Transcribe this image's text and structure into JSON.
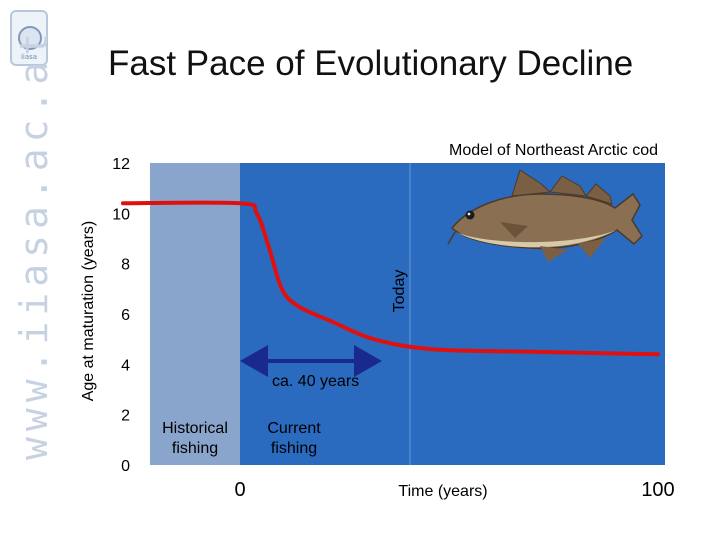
{
  "slide": {
    "title": "Fast Pace of Evolutionary Decline",
    "side_watermark": "www.iiasa.ac.at",
    "logo_text": "iiasa"
  },
  "colors": {
    "plot_background": "#2a6abf",
    "historical_shade": "#8aa5cc",
    "curve": "#e01010",
    "arrow": "#1a2a8c"
  },
  "chart_data": {
    "type": "line",
    "title": "Model of Northeast Arctic cod",
    "xlabel": "Time (years)",
    "ylabel": "Age at maturation (years)",
    "ylim": [
      0,
      12
    ],
    "yticks": [
      0,
      2,
      4,
      6,
      8,
      10,
      12
    ],
    "xlim": [
      -28,
      100
    ],
    "xtick_labels": [
      {
        "x": 0,
        "label": "0"
      },
      {
        "x": 100,
        "label": "100"
      }
    ],
    "series": [
      {
        "values": [
          {
            "x": -28,
            "y": 10.4
          },
          {
            "x": 0,
            "y": 10.4
          },
          {
            "x": 4,
            "y": 10.0
          },
          {
            "x": 7,
            "y": 8.6
          },
          {
            "x": 10,
            "y": 7.0
          },
          {
            "x": 14,
            "y": 6.3
          },
          {
            "x": 22,
            "y": 5.7
          },
          {
            "x": 32,
            "y": 5.0
          },
          {
            "x": 46,
            "y": 4.6
          },
          {
            "x": 70,
            "y": 4.5
          },
          {
            "x": 100,
            "y": 4.4
          }
        ]
      }
    ],
    "annotations": {
      "today": "Today",
      "interval": "ca. 40 years",
      "historical": [
        "Historical",
        "fishing"
      ],
      "current": [
        "Current",
        "fishing"
      ]
    },
    "illustration": "cod-fish"
  }
}
